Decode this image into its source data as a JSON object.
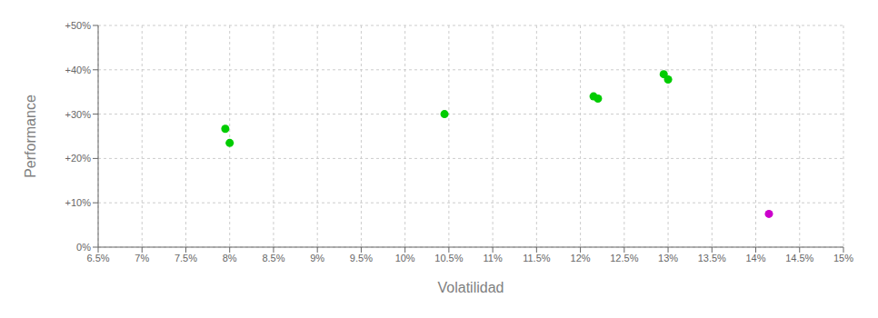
{
  "chart_data": {
    "type": "scatter",
    "xlabel": "Volatilidad",
    "ylabel": "Performance",
    "xlim": [
      0.065,
      0.15
    ],
    "ylim": [
      0.0,
      0.5
    ],
    "xticks": [
      {
        "value": 0.065,
        "label": "6.5%"
      },
      {
        "value": 0.07,
        "label": "7%"
      },
      {
        "value": 0.075,
        "label": "7.5%"
      },
      {
        "value": 0.08,
        "label": "8%"
      },
      {
        "value": 0.085,
        "label": "8.5%"
      },
      {
        "value": 0.09,
        "label": "9%"
      },
      {
        "value": 0.095,
        "label": "9.5%"
      },
      {
        "value": 0.1,
        "label": "10%"
      },
      {
        "value": 0.105,
        "label": "10.5%"
      },
      {
        "value": 0.11,
        "label": "11%"
      },
      {
        "value": 0.115,
        "label": "11.5%"
      },
      {
        "value": 0.12,
        "label": "12%"
      },
      {
        "value": 0.125,
        "label": "12.5%"
      },
      {
        "value": 0.13,
        "label": "13%"
      },
      {
        "value": 0.135,
        "label": "13.5%"
      },
      {
        "value": 0.14,
        "label": "14%"
      },
      {
        "value": 0.145,
        "label": "14.5%"
      },
      {
        "value": 0.15,
        "label": "15%"
      }
    ],
    "yticks": [
      {
        "value": 0.0,
        "label": "0%"
      },
      {
        "value": 0.1,
        "label": "+10%"
      },
      {
        "value": 0.2,
        "label": "+20%"
      },
      {
        "value": 0.3,
        "label": "+30%"
      },
      {
        "value": 0.4,
        "label": "+40%"
      },
      {
        "value": 0.5,
        "label": "+50%"
      }
    ],
    "grid": true,
    "series": [
      {
        "color": "#00cc00",
        "x": [
          0.0795,
          0.08,
          0.1045,
          0.1215,
          0.122,
          0.1295,
          0.13
        ],
        "values": [
          0.267,
          0.235,
          0.3,
          0.34,
          0.335,
          0.39,
          0.378
        ]
      },
      {
        "color": "#cc00cc",
        "x": [
          0.1415
        ],
        "values": [
          0.075
        ]
      }
    ]
  }
}
